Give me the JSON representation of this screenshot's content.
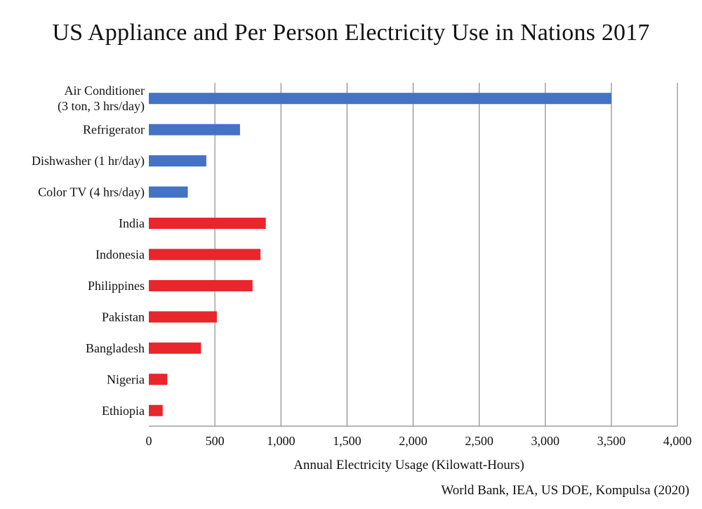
{
  "chart_data": {
    "type": "bar",
    "orientation": "horizontal",
    "title": "US Appliance and Per Person Electricity Use in Nations 2017",
    "xlabel": "Annual Electricity Usage (Kilowatt-Hours)",
    "ylabel": "",
    "source": "World Bank, IEA, US DOE, Kompulsa (2020)",
    "xlim": [
      0,
      4000
    ],
    "xticks": [
      0,
      500,
      1000,
      1500,
      2000,
      2500,
      3000,
      3500,
      4000
    ],
    "xtick_labels": [
      "0",
      "500",
      "1,000",
      "1,500",
      "2,000",
      "2,500",
      "3,000",
      "3,500",
      "4,000"
    ],
    "grid": "vertical",
    "legend": "none",
    "colors": {
      "appliance": "#4472c4",
      "nation": "#e8262b"
    },
    "bars": [
      {
        "label": [
          "Air Conditioner",
          "(3 ton, 3 hrs/day)"
        ],
        "value": 3500,
        "group": "appliance"
      },
      {
        "label": [
          "Refrigerator"
        ],
        "value": 690,
        "group": "appliance"
      },
      {
        "label": [
          "Dishwasher (1 hr/day)"
        ],
        "value": 435,
        "group": "appliance"
      },
      {
        "label": [
          "Color TV (4 hrs/day)"
        ],
        "value": 295,
        "group": "appliance"
      },
      {
        "label": [
          "India"
        ],
        "value": 885,
        "group": "nation"
      },
      {
        "label": [
          "Indonesia"
        ],
        "value": 845,
        "group": "nation"
      },
      {
        "label": [
          "Philippines"
        ],
        "value": 785,
        "group": "nation"
      },
      {
        "label": [
          "Pakistan"
        ],
        "value": 515,
        "group": "nation"
      },
      {
        "label": [
          "Bangladesh"
        ],
        "value": 395,
        "group": "nation"
      },
      {
        "label": [
          "Nigeria"
        ],
        "value": 140,
        "group": "nation"
      },
      {
        "label": [
          "Ethiopia"
        ],
        "value": 105,
        "group": "nation"
      }
    ]
  }
}
